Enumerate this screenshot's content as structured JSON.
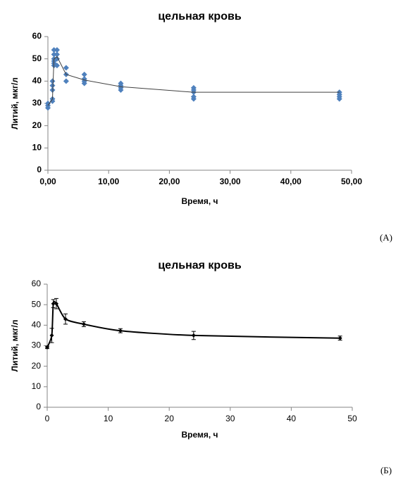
{
  "chart_data": [
    {
      "type": "scatter",
      "title": "цельная кровь",
      "x_label": "Время, ч",
      "y_label": "Литий, мкг/л",
      "panel_label": "(A)",
      "xlim": [
        0,
        50
      ],
      "ylim": [
        0,
        60
      ],
      "xticks": [
        {
          "value": 0,
          "label": "0,00"
        },
        {
          "value": 10,
          "label": "10,00"
        },
        {
          "value": 20,
          "label": "20,00"
        },
        {
          "value": 30,
          "label": "30,00"
        },
        {
          "value": 40,
          "label": "40,00"
        },
        {
          "value": 50,
          "label": "50,00"
        }
      ],
      "yticks": [
        0,
        10,
        20,
        30,
        40,
        50,
        60
      ],
      "series": [
        {
          "type": "scatter",
          "color": "#4f81bd",
          "x": [
            0,
            0,
            0,
            0.75,
            0.75,
            0.75,
            0.75,
            0.75,
            1,
            1,
            1,
            1,
            1,
            1,
            1.5,
            1.5,
            1.5,
            1.5,
            3,
            3,
            3,
            6,
            6,
            6,
            6,
            12,
            12,
            12,
            12,
            24,
            24,
            24,
            24,
            24,
            48,
            48,
            48,
            48
          ],
          "values": [
            28,
            29,
            30,
            31,
            32,
            36,
            38,
            40,
            47,
            48,
            49,
            50,
            52,
            54,
            47,
            50,
            52,
            54,
            40,
            43,
            46,
            39,
            40,
            41,
            43,
            36,
            37,
            38,
            39,
            32,
            33,
            35,
            36,
            37,
            32,
            33,
            34,
            35
          ]
        },
        {
          "type": "line",
          "color": "#404040",
          "x": [
            0,
            0.75,
            1,
            1.5,
            3,
            6,
            12,
            24,
            48
          ],
          "values": [
            29,
            32,
            50,
            51,
            43,
            40.5,
            37.5,
            35,
            35
          ]
        }
      ]
    },
    {
      "type": "line",
      "title": "цельная кровь",
      "x_label": "Время, ч",
      "y_label": "Литий, мкг/л",
      "panel_label": "(Б)",
      "xlim": [
        0,
        50
      ],
      "ylim": [
        0,
        60
      ],
      "xticks": [
        0,
        10,
        20,
        30,
        40,
        50
      ],
      "yticks": [
        0,
        10,
        20,
        30,
        40,
        50,
        60
      ],
      "smooth": true,
      "series": [
        {
          "type": "line",
          "color": "#000000",
          "x": [
            0,
            0.75,
            1,
            1.5,
            3,
            6,
            12,
            24,
            48
          ],
          "values": [
            29.2,
            35,
            50.5,
            50.5,
            43,
            40.5,
            37.3,
            35,
            33.7
          ],
          "errors": [
            0.6,
            3.5,
            2,
            2.5,
            2.5,
            1.2,
            1,
            2,
            1
          ]
        }
      ]
    }
  ]
}
